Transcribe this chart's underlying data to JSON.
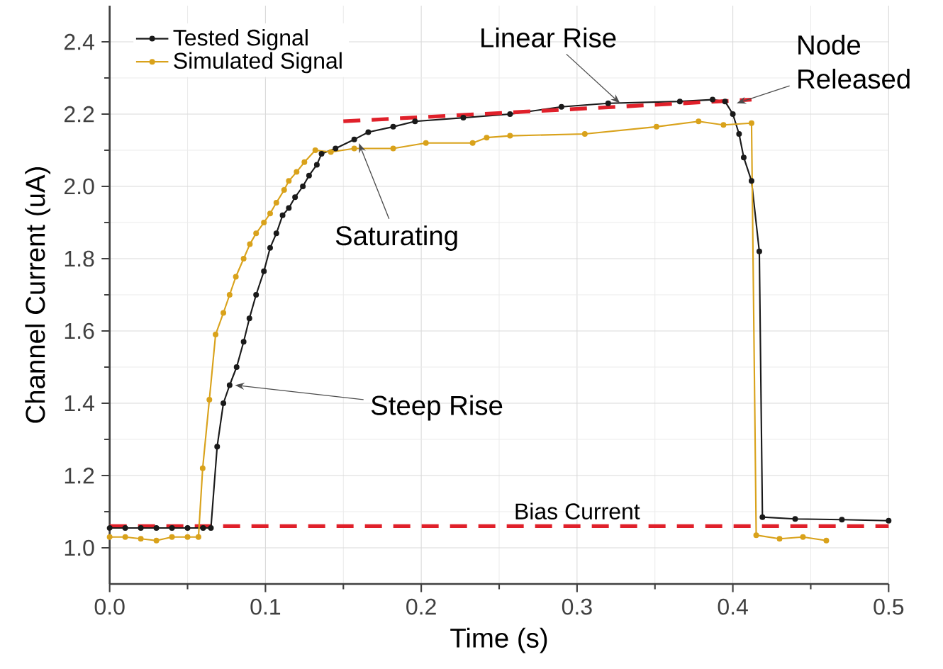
{
  "chart_data": {
    "type": "line",
    "xlabel": "Time (s)",
    "ylabel": "Channel Current (uA)",
    "xlim": [
      0,
      0.5
    ],
    "ylim": [
      0.9,
      2.5
    ],
    "xticks": [
      {
        "value": 0,
        "label": "0.0"
      },
      0.1,
      0.2,
      0.3,
      0.4,
      0.5
    ],
    "yticks": [
      {
        "value": 1.0,
        "label": "1.0"
      },
      1.2,
      1.4,
      1.6,
      1.8,
      {
        "value": 2.0,
        "label": "2.0"
      },
      2.2,
      2.4
    ],
    "grid": true,
    "legend": "top left",
    "marker": "circle",
    "series": [
      {
        "name": "Tested Signal",
        "color": "#1a1a1a",
        "x": [
          0,
          0.01,
          0.02,
          0.03,
          0.04,
          0.05,
          0.06,
          0.065,
          0.069,
          0.073,
          0.077,
          0.0815,
          0.086,
          0.0897,
          0.094,
          0.099,
          0.103,
          0.107,
          0.111,
          0.115,
          0.119,
          0.124,
          0.128,
          0.133,
          0.136,
          0.145,
          0.157,
          0.166,
          0.182,
          0.196,
          0.227,
          0.257,
          0.29,
          0.32,
          0.366,
          0.387,
          0.395,
          0.4,
          0.404,
          0.407,
          0.412,
          0.417,
          0.419,
          0.44,
          0.47,
          0.5
        ],
        "values": [
          1.055,
          1.055,
          1.055,
          1.055,
          1.055,
          1.055,
          1.055,
          1.055,
          1.28,
          1.4,
          1.45,
          1.5,
          1.57,
          1.635,
          1.7,
          1.765,
          1.83,
          1.87,
          1.92,
          1.94,
          1.97,
          2.0,
          2.03,
          2.06,
          2.09,
          2.105,
          2.13,
          2.15,
          2.165,
          2.18,
          2.19,
          2.2,
          2.22,
          2.23,
          2.235,
          2.24,
          2.235,
          2.2,
          2.145,
          2.08,
          2.015,
          1.82,
          1.085,
          1.08,
          1.078,
          1.075
        ]
      },
      {
        "name": "Simulated Signal",
        "color": "#d9a21b",
        "x": [
          0,
          0.01,
          0.02,
          0.03,
          0.04,
          0.05,
          0.057,
          0.0597,
          0.064,
          0.068,
          0.073,
          0.077,
          0.081,
          0.086,
          0.09,
          0.094,
          0.099,
          0.103,
          0.107,
          0.112,
          0.115,
          0.12,
          0.125,
          0.132,
          0.142,
          0.157,
          0.182,
          0.203,
          0.233,
          0.242,
          0.257,
          0.305,
          0.351,
          0.378,
          0.394,
          0.412,
          0.415,
          0.43,
          0.445,
          0.46
        ],
        "values": [
          1.03,
          1.03,
          1.025,
          1.02,
          1.03,
          1.03,
          1.03,
          1.22,
          1.41,
          1.59,
          1.65,
          1.7,
          1.75,
          1.8,
          1.84,
          1.87,
          1.9,
          1.925,
          1.955,
          1.99,
          2.015,
          2.04,
          2.067,
          2.1,
          2.095,
          2.105,
          2.105,
          2.12,
          2.12,
          2.135,
          2.14,
          2.145,
          2.165,
          2.18,
          2.17,
          2.175,
          1.035,
          1.025,
          1.03,
          1.02
        ]
      },
      {
        "type": "line",
        "color": "#e0202a",
        "line_style": "dashed",
        "marker": "none",
        "x": [
          0.15,
          0.412
        ],
        "values": [
          2.18,
          2.24
        ]
      }
    ],
    "ref_lines": [
      {
        "axis": "y",
        "value": 1.06,
        "label": "Bias Current",
        "color": "#e0202a",
        "line_style": "dashed"
      }
    ],
    "annotations": [
      {
        "text": "Steep Rise",
        "x": 0.078,
        "y": 1.45
      },
      {
        "text": "Saturating",
        "x": 0.16,
        "y": 2.13
      },
      {
        "text": "Linear Rise",
        "x": 0.33,
        "y": 2.23
      },
      {
        "text": "Node Released",
        "x": 0.4,
        "y": 2.23
      }
    ]
  }
}
